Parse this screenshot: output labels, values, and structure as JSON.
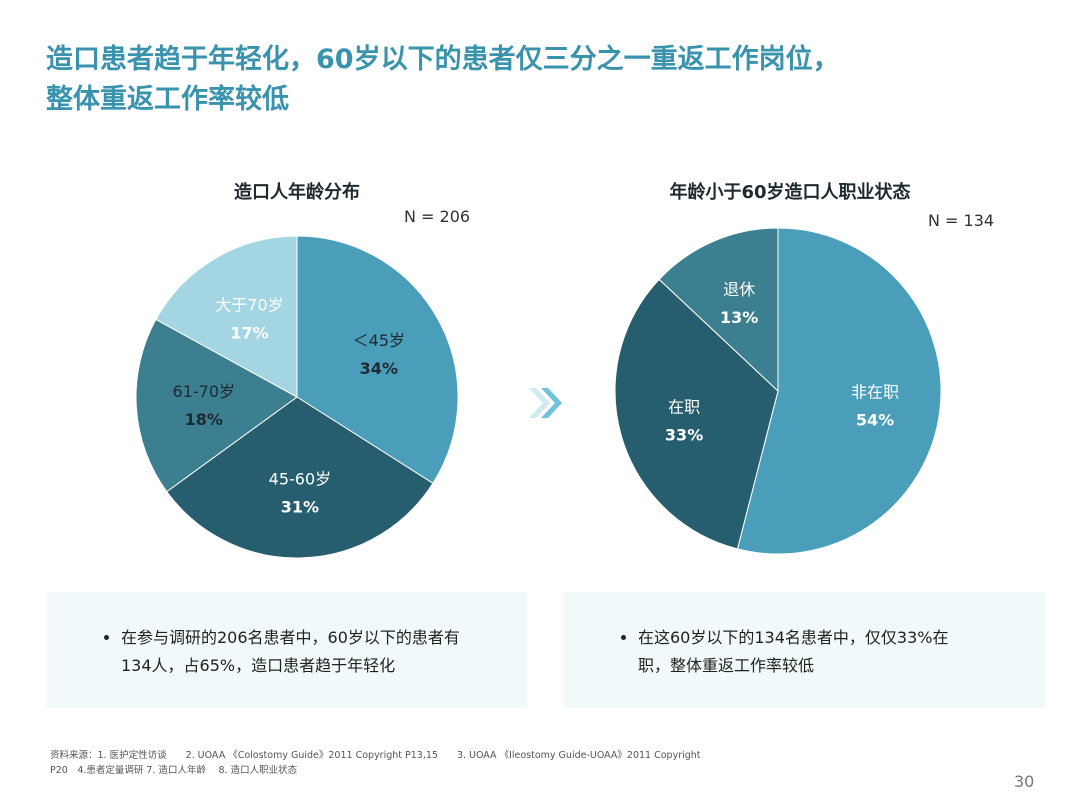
{
  "title": {
    "line1": "造口患者趋于年轻化，60岁以下的患者仅三分之一重返工作岗位，",
    "line2": "整体重返工作率较低"
  },
  "chart_data": [
    {
      "type": "pie",
      "title": "造口人年龄分布",
      "n_label": "N = 206",
      "slices": [
        {
          "name": "<45岁",
          "label": "＜45岁",
          "value": 34,
          "pct_label": "34%",
          "color": "#4a9eb9",
          "text_color": "#1f2a30"
        },
        {
          "name": "45-60岁",
          "label": "45-60岁",
          "value": 31,
          "pct_label": "31%",
          "color": "#275e6f",
          "text_color": "#ffffff"
        },
        {
          "name": "61-70岁",
          "label": "61-70岁",
          "value": 18,
          "pct_label": "18%",
          "color": "#3b7f91",
          "text_color": "#1f2a30"
        },
        {
          "name": "大于70岁",
          "label": "大于70岁",
          "value": 17,
          "pct_label": "17%",
          "color": "#a4d5e2",
          "text_color": "#ffffff"
        }
      ]
    },
    {
      "type": "pie",
      "title": "年龄小于60岁造口人职业状态",
      "n_label": "N = 134",
      "slices": [
        {
          "name": "非在职",
          "label": "非在职",
          "value": 54,
          "pct_label": "54%",
          "color": "#4a9eb9",
          "text_color": "#ffffff"
        },
        {
          "name": "在职",
          "label": "在职",
          "value": 33,
          "pct_label": "33%",
          "color": "#275e6f",
          "text_color": "#ffffff"
        },
        {
          "name": "退休",
          "label": "退休",
          "value": 13,
          "pct_label": "13%",
          "color": "#3b7f91",
          "text_color": "#ffffff"
        }
      ]
    }
  ],
  "notes": {
    "left": [
      "在参与调研的206名患者中，60岁以下的患者有",
      "134人，占65%，造口患者趋于年轻化"
    ],
    "right": [
      "在这60岁以下的134名患者中，仅仅33%在",
      "职，整体重返工作率较低"
    ]
  },
  "source": {
    "line1": "资料来源：1. 医护定性访谈　　2. UOAA 《Colostomy Guide》2011 Copyright  P13,15　　3. UOAA 《Ileostomy Guide-UOAA》2011 Copyright",
    "line2": "P20　4.患者定量调研 7. 造口人年龄　 8. 造口人职业状态"
  },
  "page_number": "30",
  "icons": {
    "arrow": "double-chevron-right-icon"
  },
  "colors": {
    "accent": "#3a93ad"
  }
}
